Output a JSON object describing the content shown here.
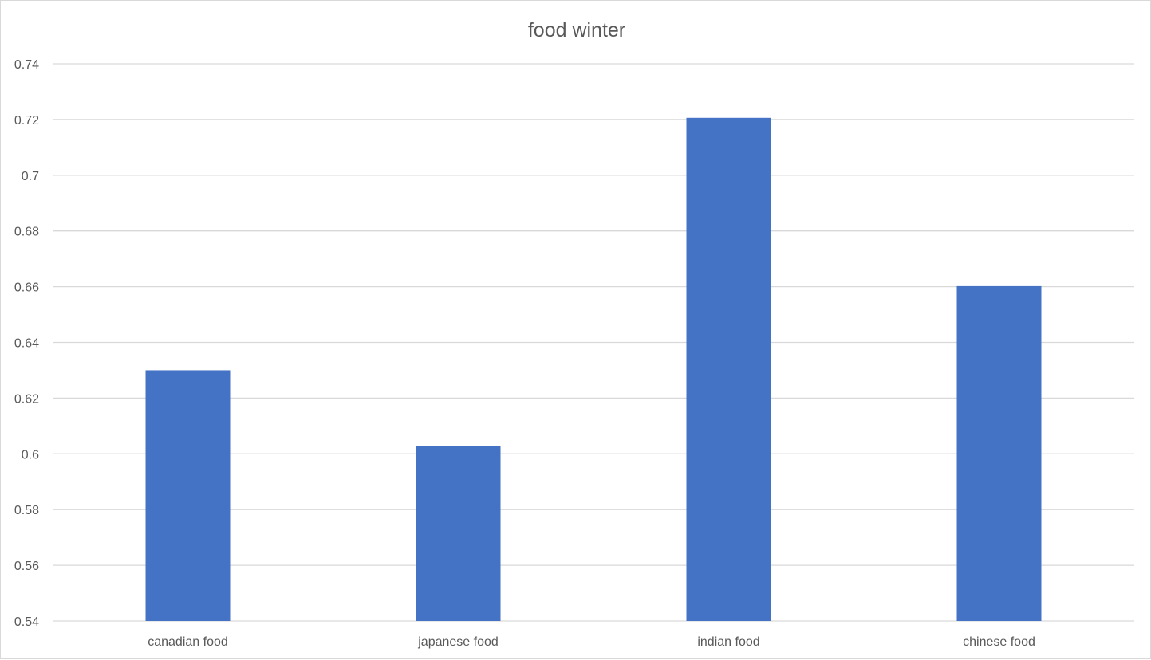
{
  "chart_data": {
    "type": "bar",
    "title": "food winter",
    "xlabel": "",
    "ylabel": "",
    "categories": [
      "canadian food",
      "japanese food",
      "indian food",
      "chinese food"
    ],
    "values": [
      0.63,
      0.6027,
      0.7206,
      0.6602
    ],
    "ylim": [
      0.54,
      0.74
    ],
    "yticks": [
      "0.54",
      "0.56",
      "0.58",
      "0.6",
      "0.62",
      "0.64",
      "0.66",
      "0.68",
      "0.7",
      "0.72",
      "0.74"
    ],
    "grid": true,
    "legend": "none",
    "bar_color": "#4472C4"
  }
}
